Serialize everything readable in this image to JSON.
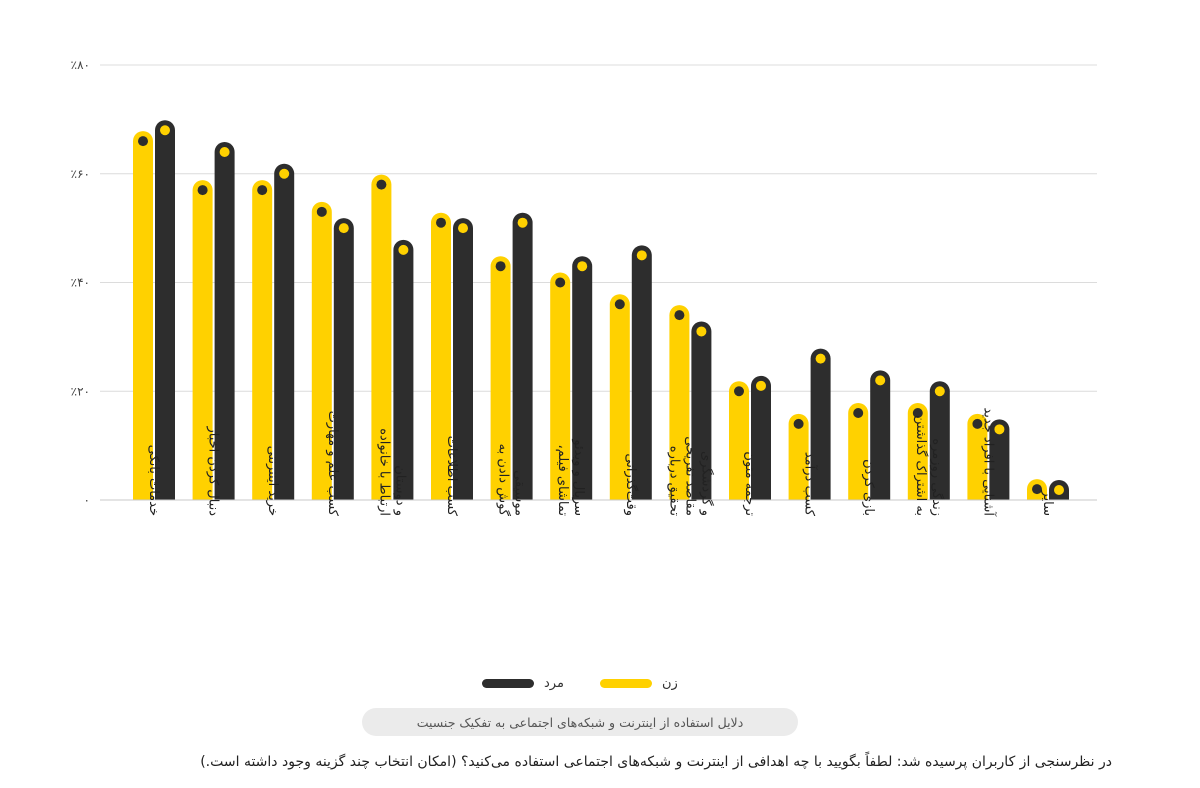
{
  "chart_data": {
    "type": "bar",
    "ylim": [
      0,
      80
    ],
    "y_ticks": [
      0,
      20,
      40,
      60,
      80
    ],
    "y_tick_labels": [
      "۰",
      "٪۲۰",
      "٪۴۰",
      "٪۶۰",
      "٪۸۰"
    ],
    "grid": true,
    "legend_placement": "bottom-center",
    "categories": [
      [
        "خدمات بانکی"
      ],
      [
        "دنبال کردن اخبار"
      ],
      [
        "خرید اینترنتی"
      ],
      [
        "کسب علم و مهارت"
      ],
      [
        "ارتباط با خانواده",
        "و دوستان"
      ],
      [
        "کسب اطلاعات"
      ],
      [
        "گوش دادن به",
        "موسیقی"
      ],
      [
        "تماشای فیلم،",
        "سریال و ویدئو"
      ],
      [
        "وقت‌گذرانی"
      ],
      [
        "تحقیق درباره",
        "مقاصد تفریحی",
        "و گردشگری"
      ],
      [
        "ترجمه متون"
      ],
      [
        "کسب درآمد"
      ],
      [
        "بازی کردن"
      ],
      [
        "به اشتراک گذاشتن",
        "زندگی روزمره"
      ],
      [
        "آشنایی با افراد جدید"
      ],
      [
        "سایر"
      ]
    ],
    "series": [
      {
        "name": "زن",
        "color": "#FFD100",
        "dot_color": "#2d2d2d",
        "values": [
          66,
          57,
          57,
          53,
          58,
          51,
          43,
          40,
          36,
          34,
          20,
          14,
          16,
          16,
          14,
          2
        ]
      },
      {
        "name": "مرد",
        "color": "#2d2d2d",
        "dot_color": "#FFD100",
        "values": [
          68,
          64,
          60,
          50,
          46,
          50,
          51,
          43,
          45,
          31,
          21,
          26,
          22,
          20,
          13,
          0.3
        ]
      }
    ]
  },
  "caption": "دلایل استفاده از اینترنت و شبکه‌های اجتماعی به تفکیک جنسیت",
  "question": "در نظرسنجی از کاربران پرسیده شد: لطفاً بگویید با چه اهدافی از اینترنت و شبکه‌های اجتماعی استفاده می‌کنید؟ (امکان انتخاب چند گزینه وجود داشته است.)"
}
